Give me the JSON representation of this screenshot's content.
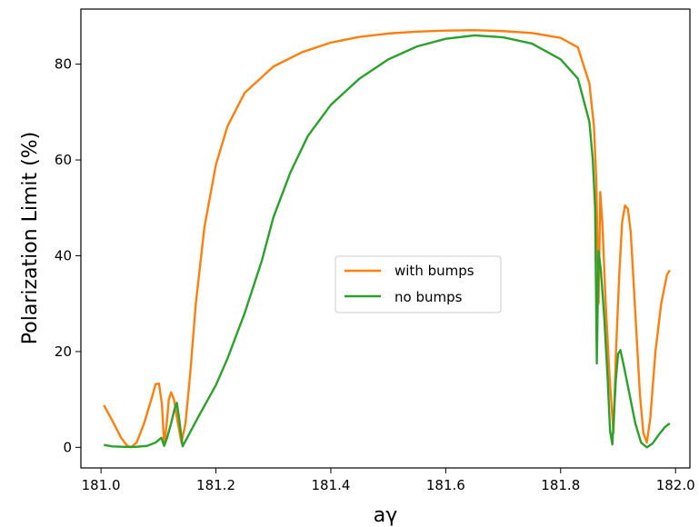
{
  "chart_data": {
    "type": "line",
    "title": "",
    "xlabel": "aγ",
    "ylabel": "Polarization Limit  (%)",
    "xlim": [
      180.965,
      182.025
    ],
    "ylim": [
      -4.3,
      91.5
    ],
    "xticks": [
      181.0,
      181.2,
      181.4,
      181.6,
      181.8,
      182.0
    ],
    "xtick_labels": [
      "181.0",
      "181.2",
      "181.4",
      "181.6",
      "181.8",
      "182.0"
    ],
    "yticks": [
      0,
      20,
      40,
      60,
      80
    ],
    "ytick_labels": [
      "0",
      "20",
      "40",
      "60",
      "80"
    ],
    "grid": false,
    "legend_position": "center-right",
    "series": [
      {
        "name": "with bumps",
        "color": "#ff7f0e",
        "points": [
          [
            181.005,
            8.8
          ],
          [
            181.02,
            5.5
          ],
          [
            181.035,
            2.0
          ],
          [
            181.045,
            0.4
          ],
          [
            181.052,
            0.0
          ],
          [
            181.062,
            1.0
          ],
          [
            181.075,
            5.0
          ],
          [
            181.09,
            11.0
          ],
          [
            181.095,
            13.2
          ],
          [
            181.101,
            13.3
          ],
          [
            181.106,
            9.0
          ],
          [
            181.11,
            0.5
          ],
          [
            181.114,
            4.5
          ],
          [
            181.118,
            10.0
          ],
          [
            181.122,
            11.5
          ],
          [
            181.127,
            10.0
          ],
          [
            181.133,
            5.5
          ],
          [
            181.14,
            1.0
          ],
          [
            181.147,
            5.0
          ],
          [
            181.155,
            15.0
          ],
          [
            181.165,
            30.0
          ],
          [
            181.18,
            46.0
          ],
          [
            181.2,
            59.0
          ],
          [
            181.22,
            67.0
          ],
          [
            181.25,
            74.0
          ],
          [
            181.3,
            79.5
          ],
          [
            181.35,
            82.5
          ],
          [
            181.4,
            84.5
          ],
          [
            181.45,
            85.7
          ],
          [
            181.5,
            86.4
          ],
          [
            181.55,
            86.8
          ],
          [
            181.6,
            87.0
          ],
          [
            181.65,
            87.1
          ],
          [
            181.7,
            86.9
          ],
          [
            181.75,
            86.5
          ],
          [
            181.8,
            85.5
          ],
          [
            181.83,
            83.5
          ],
          [
            181.85,
            76.0
          ],
          [
            181.858,
            67.0
          ],
          [
            181.862,
            56.0
          ],
          [
            181.866,
            30.0
          ],
          [
            181.869,
            53.3
          ],
          [
            181.873,
            46.0
          ],
          [
            181.878,
            31.0
          ],
          [
            181.885,
            15.0
          ],
          [
            181.892,
            3.0
          ],
          [
            181.896,
            19.0
          ],
          [
            181.902,
            36.0
          ],
          [
            181.907,
            47.0
          ],
          [
            181.912,
            50.5
          ],
          [
            181.917,
            49.8
          ],
          [
            181.922,
            45.0
          ],
          [
            181.93,
            28.0
          ],
          [
            181.938,
            11.0
          ],
          [
            181.944,
            3.0
          ],
          [
            181.95,
            1.0
          ],
          [
            181.956,
            6.0
          ],
          [
            181.965,
            20.0
          ],
          [
            181.975,
            30.0
          ],
          [
            181.985,
            36.0
          ],
          [
            181.99,
            37.0
          ]
        ]
      },
      {
        "name": "no bumps",
        "color": "#2ca02c",
        "points": [
          [
            181.005,
            0.5
          ],
          [
            181.02,
            0.2
          ],
          [
            181.04,
            0.1
          ],
          [
            181.06,
            0.1
          ],
          [
            181.08,
            0.3
          ],
          [
            181.095,
            1.0
          ],
          [
            181.105,
            2.0
          ],
          [
            181.11,
            0.3
          ],
          [
            181.115,
            2.0
          ],
          [
            181.122,
            5.0
          ],
          [
            181.128,
            8.0
          ],
          [
            181.132,
            9.3
          ],
          [
            181.136,
            6.0
          ],
          [
            181.142,
            0.2
          ],
          [
            181.15,
            2.0
          ],
          [
            181.17,
            6.5
          ],
          [
            181.2,
            13.0
          ],
          [
            181.22,
            18.5
          ],
          [
            181.25,
            28.0
          ],
          [
            181.28,
            39.0
          ],
          [
            181.3,
            48.0
          ],
          [
            181.33,
            57.5
          ],
          [
            181.36,
            65.0
          ],
          [
            181.4,
            71.5
          ],
          [
            181.45,
            77.0
          ],
          [
            181.5,
            81.0
          ],
          [
            181.55,
            83.7
          ],
          [
            181.6,
            85.3
          ],
          [
            181.65,
            86.0
          ],
          [
            181.7,
            85.6
          ],
          [
            181.75,
            84.3
          ],
          [
            181.8,
            81.0
          ],
          [
            181.83,
            77.0
          ],
          [
            181.85,
            68.0
          ],
          [
            181.856,
            60.0
          ],
          [
            181.86,
            50.0
          ],
          [
            181.863,
            17.5
          ],
          [
            181.866,
            41.0
          ],
          [
            181.87,
            37.0
          ],
          [
            181.876,
            27.0
          ],
          [
            181.882,
            14.0
          ],
          [
            181.886,
            3.5
          ],
          [
            181.89,
            0.6
          ],
          [
            181.896,
            14.0
          ],
          [
            181.9,
            19.5
          ],
          [
            181.904,
            20.3
          ],
          [
            181.91,
            17.0
          ],
          [
            181.92,
            11.0
          ],
          [
            181.93,
            5.0
          ],
          [
            181.94,
            1.0
          ],
          [
            181.95,
            0.0
          ],
          [
            181.96,
            0.8
          ],
          [
            181.97,
            2.5
          ],
          [
            181.982,
            4.3
          ],
          [
            181.99,
            5.0
          ]
        ]
      }
    ]
  }
}
